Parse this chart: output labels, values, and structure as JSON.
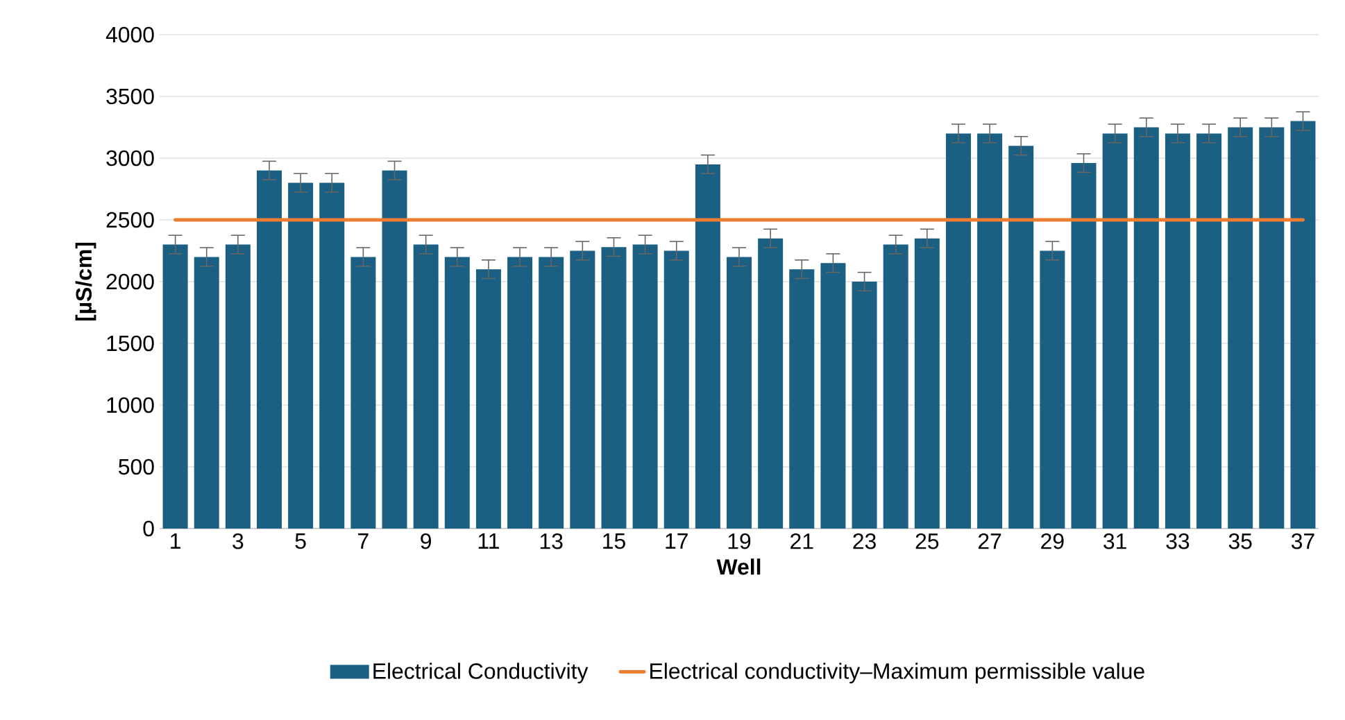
{
  "chart_data": {
    "type": "bar",
    "xlabel": "Well",
    "ylabel": "[µS/cm]",
    "categories": [
      "1",
      null,
      "3",
      null,
      "5",
      null,
      "7",
      null,
      "9",
      null,
      "11",
      null,
      "13",
      null,
      "15",
      null,
      "17",
      null,
      "19",
      null,
      "21",
      null,
      "23",
      null,
      "25",
      null,
      "27",
      null,
      "29",
      null,
      "31",
      null,
      "33",
      null,
      "35",
      null,
      "37"
    ],
    "series": [
      {
        "name": "Electrical Conductivity",
        "color": "#1b5f82",
        "values": [
          2300,
          2200,
          2300,
          2900,
          2800,
          2800,
          2200,
          2900,
          2300,
          2200,
          2100,
          2200,
          2200,
          2250,
          2280,
          2300,
          2250,
          2950,
          2200,
          2350,
          2100,
          2150,
          2000,
          2300,
          2350,
          3200,
          3200,
          3100,
          2250,
          2960,
          3200,
          3250,
          3200,
          3200,
          3250,
          3250,
          3300
        ],
        "errors": [
          75,
          75,
          75,
          75,
          75,
          75,
          75,
          75,
          75,
          75,
          75,
          75,
          75,
          75,
          75,
          75,
          75,
          75,
          75,
          75,
          75,
          75,
          75,
          75,
          75,
          75,
          75,
          75,
          75,
          75,
          75,
          75,
          75,
          75,
          75,
          75,
          75
        ]
      }
    ],
    "ref_lines": [
      {
        "axis": "y",
        "value": 2500,
        "label": "Electrical conductivity–Maximum permissible value",
        "color": "#ed7d31"
      }
    ],
    "ylim": [
      0,
      4000
    ],
    "yticks": [
      0,
      500,
      1000,
      1500,
      2000,
      2500,
      3000,
      3500,
      4000
    ],
    "grid": "y",
    "legend": "bottom"
  }
}
